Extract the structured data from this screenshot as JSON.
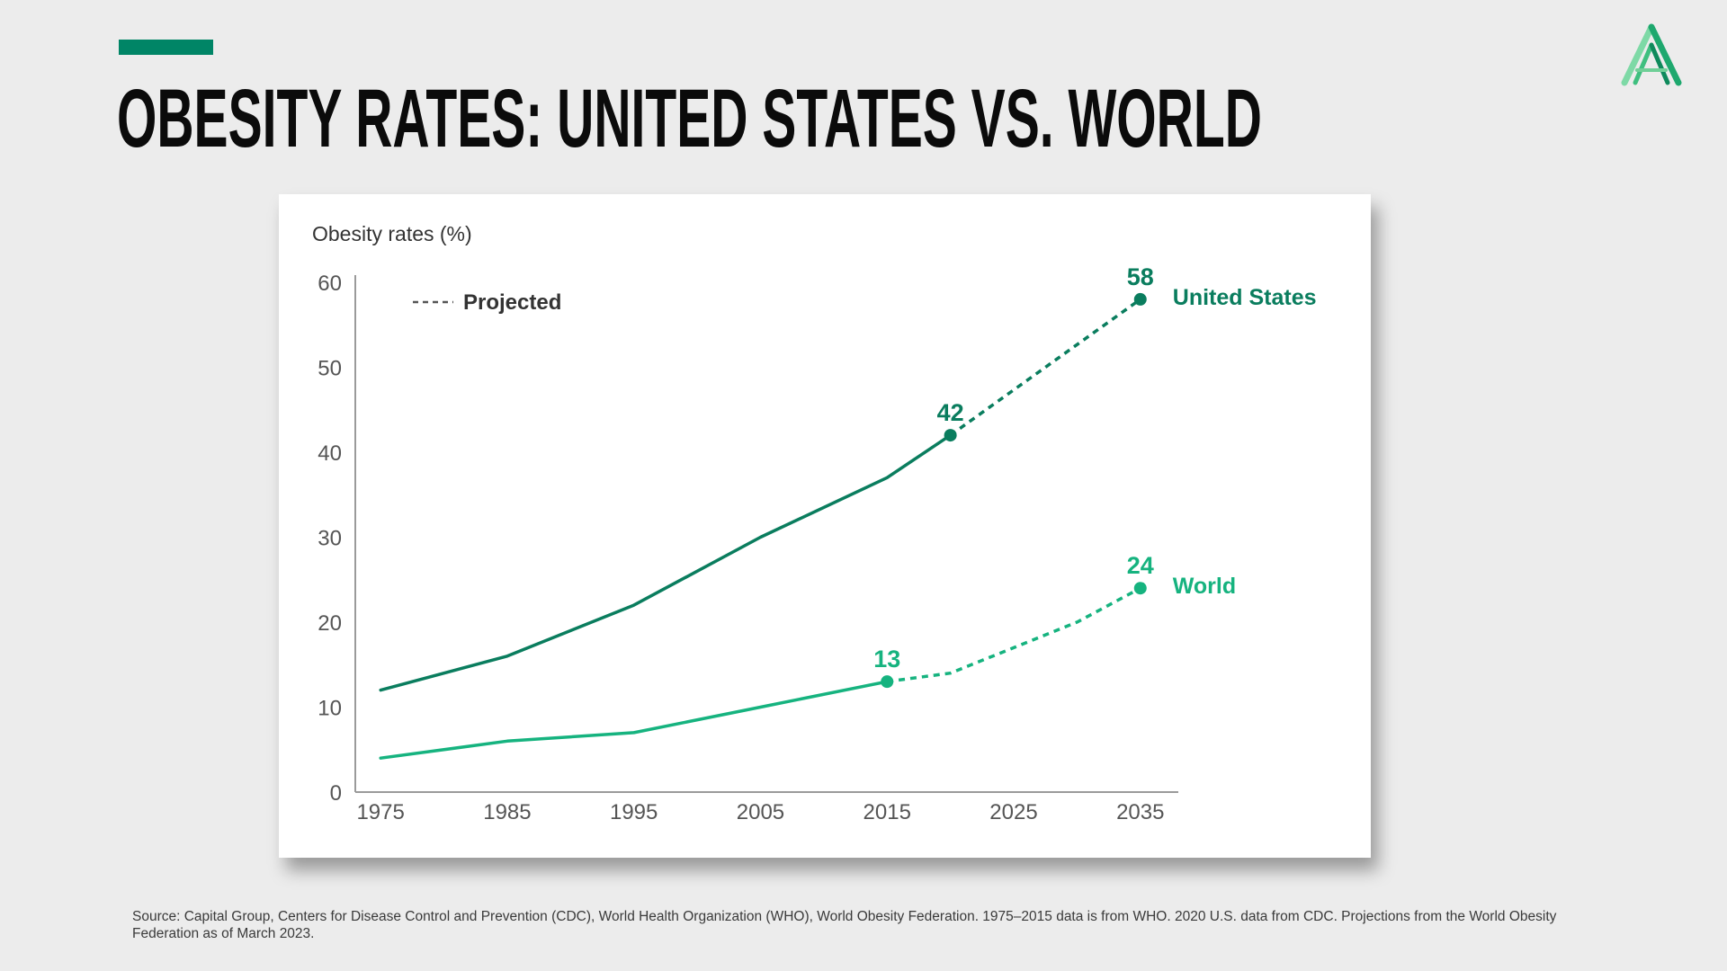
{
  "slide": {
    "title": "OBESITY RATES: UNITED STATES VS. WORLD",
    "source": "Source: Capital Group, Centers for Disease Control and Prevention (CDC), World Health Organization (WHO), World Obesity Federation. 1975–2015 data is from WHO. 2020 U.S. data from CDC. Projections from the World Obesity Federation as of March 2023.",
    "accent_color": "#008566",
    "logo_icon": "stylized-A-logo-icon"
  },
  "chart_data": {
    "type": "line",
    "title": "Obesity rates (%)",
    "xlabel": "",
    "ylabel": "Obesity rates (%)",
    "xlim": [
      1973,
      2038
    ],
    "ylim": [
      0,
      60
    ],
    "x_ticks": [
      1975,
      1985,
      1995,
      2005,
      2015,
      2025,
      2035
    ],
    "y_ticks": [
      0,
      10,
      20,
      30,
      40,
      50,
      60
    ],
    "legend": {
      "label": "Projected",
      "style": "dashed",
      "placement": "top-left"
    },
    "series": [
      {
        "name": "United States",
        "color": "#0a7d5e",
        "actual": [
          {
            "x": 1975,
            "y": 12
          },
          {
            "x": 1985,
            "y": 16
          },
          {
            "x": 1995,
            "y": 22
          },
          {
            "x": 2005,
            "y": 30
          },
          {
            "x": 2015,
            "y": 37
          },
          {
            "x": 2020,
            "y": 42
          }
        ],
        "projected": [
          {
            "x": 2020,
            "y": 42
          },
          {
            "x": 2035,
            "y": 58
          }
        ],
        "labeled_points": [
          {
            "x": 2020,
            "y": 42,
            "label": "42"
          },
          {
            "x": 2035,
            "y": 58,
            "label": "58"
          }
        ]
      },
      {
        "name": "World",
        "color": "#16b37f",
        "actual": [
          {
            "x": 1975,
            "y": 4
          },
          {
            "x": 1985,
            "y": 6
          },
          {
            "x": 1995,
            "y": 7
          },
          {
            "x": 2005,
            "y": 10
          },
          {
            "x": 2015,
            "y": 13
          }
        ],
        "projected": [
          {
            "x": 2015,
            "y": 13
          },
          {
            "x": 2020,
            "y": 14
          },
          {
            "x": 2025,
            "y": 17
          },
          {
            "x": 2030,
            "y": 20
          },
          {
            "x": 2035,
            "y": 24
          }
        ],
        "labeled_points": [
          {
            "x": 2015,
            "y": 13,
            "label": "13"
          },
          {
            "x": 2035,
            "y": 24,
            "label": "24"
          }
        ]
      }
    ]
  }
}
